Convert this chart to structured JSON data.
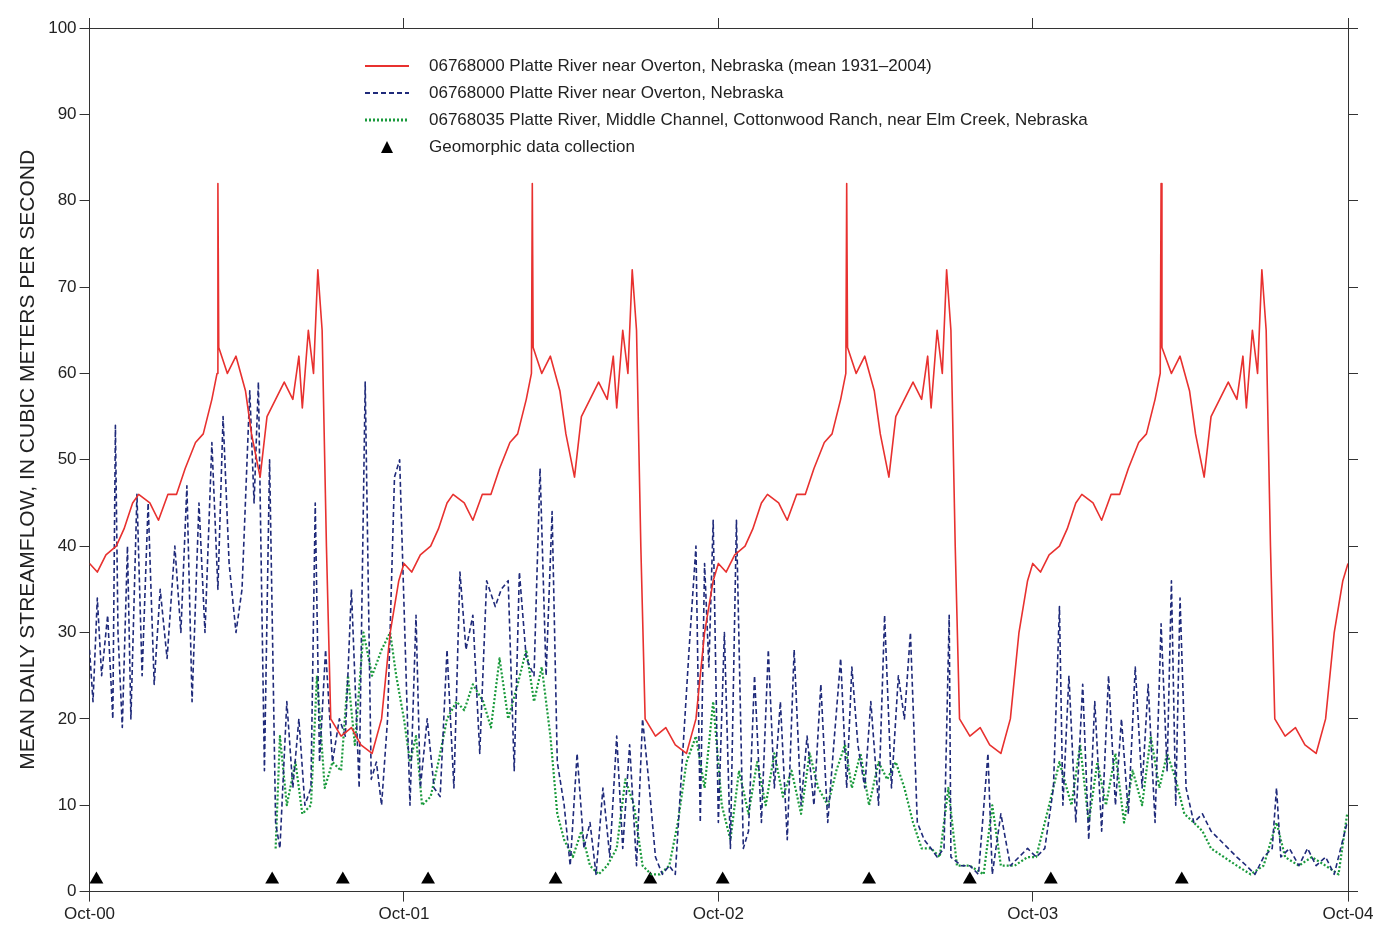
{
  "chart_data": {
    "type": "line",
    "ylabel": "MEAN DAILY STREAMFLOW, IN CUBIC METERS PER SECOND",
    "xlim": [
      "2000-10-01",
      "2004-10-01"
    ],
    "xticks": [
      {
        "value": "2000-10-01",
        "label": "Oct-00"
      },
      {
        "value": "2001-10-01",
        "label": "Oct-01"
      },
      {
        "value": "2002-10-01",
        "label": "Oct-02"
      },
      {
        "value": "2003-10-01",
        "label": "Oct-03"
      },
      {
        "value": "2004-10-01",
        "label": "Oct-04"
      }
    ],
    "ylim": [
      0,
      100
    ],
    "yticks": [
      0,
      10,
      20,
      30,
      40,
      50,
      60,
      70,
      80,
      90,
      100
    ],
    "grid": false,
    "legend": "top",
    "series": [
      {
        "name": "06768000 Platte River near Overton, Nebraska (mean 1931–2004)",
        "color": "#e8312f",
        "line_style": "solid",
        "marker": "none",
        "x": [
          "2000-10-01",
          "2000-10-10",
          "2000-10-20",
          "2000-11-01",
          "2000-11-10",
          "2000-11-20",
          "2000-11-27",
          "2000-12-10",
          "2000-12-20",
          "2000-12-31",
          "2001-01-10",
          "2001-01-20",
          "2001-02-01",
          "2001-02-10",
          "2001-02-20",
          "2001-02-26",
          "2001-02-27",
          "2001-02-28",
          "2001-03-10",
          "2001-03-20",
          "2001-03-31",
          "2001-04-07",
          "2001-04-17",
          "2001-04-25",
          "2001-05-05",
          "2001-05-15",
          "2001-05-25",
          "2001-06-01",
          "2001-06-05",
          "2001-06-12",
          "2001-06-18",
          "2001-06-23",
          "2001-06-28",
          "2001-07-03",
          "2001-07-08",
          "2001-07-20",
          "2001-08-01",
          "2001-08-12",
          "2001-08-25",
          "2001-09-05",
          "2001-09-15",
          "2001-09-25",
          "2001-10-01",
          "2001-10-10",
          "2001-10-20",
          "2001-11-01",
          "2001-11-10",
          "2001-11-20",
          "2001-11-27",
          "2001-12-10",
          "2001-12-20",
          "2001-12-31",
          "2002-01-10",
          "2002-01-20",
          "2002-02-01",
          "2002-02-10",
          "2002-02-20",
          "2002-02-26",
          "2002-02-27",
          "2002-02-28",
          "2002-03-10",
          "2002-03-20",
          "2002-03-31",
          "2002-04-07",
          "2002-04-17",
          "2002-04-25",
          "2002-05-05",
          "2002-05-15",
          "2002-05-25",
          "2002-06-01",
          "2002-06-05",
          "2002-06-12",
          "2002-06-18",
          "2002-06-23",
          "2002-06-28",
          "2002-07-03",
          "2002-07-08",
          "2002-07-20",
          "2002-08-01",
          "2002-08-12",
          "2002-08-25",
          "2002-09-05",
          "2002-09-15",
          "2002-09-25",
          "2002-10-01",
          "2002-10-10",
          "2002-10-20",
          "2002-11-01",
          "2002-11-10",
          "2002-11-20",
          "2002-11-27",
          "2002-12-10",
          "2002-12-20",
          "2002-12-31",
          "2003-01-10",
          "2003-01-20",
          "2003-02-01",
          "2003-02-10",
          "2003-02-20",
          "2003-02-26",
          "2003-02-27",
          "2003-02-28",
          "2003-03-10",
          "2003-03-20",
          "2003-03-31",
          "2003-04-07",
          "2003-04-17",
          "2003-04-25",
          "2003-05-05",
          "2003-05-15",
          "2003-05-25",
          "2003-06-01",
          "2003-06-05",
          "2003-06-12",
          "2003-06-18",
          "2003-06-23",
          "2003-06-28",
          "2003-07-03",
          "2003-07-08",
          "2003-07-20",
          "2003-08-01",
          "2003-08-12",
          "2003-08-25",
          "2003-09-05",
          "2003-09-15",
          "2003-09-25",
          "2003-10-01",
          "2003-10-10",
          "2003-10-20",
          "2003-11-01",
          "2003-11-10",
          "2003-11-20",
          "2003-11-27",
          "2003-12-10",
          "2003-12-20",
          "2003-12-31",
          "2004-01-10",
          "2004-01-20",
          "2004-02-01",
          "2004-02-10",
          "2004-02-20",
          "2004-02-26",
          "2004-02-27",
          "2004-02-28",
          "2004-03-10",
          "2004-03-20",
          "2004-03-31",
          "2004-04-07",
          "2004-04-17",
          "2004-04-25",
          "2004-05-05",
          "2004-05-15",
          "2004-05-25",
          "2004-06-01",
          "2004-06-05",
          "2004-06-12",
          "2004-06-18",
          "2004-06-23",
          "2004-06-28",
          "2004-07-03",
          "2004-07-08",
          "2004-07-20",
          "2004-08-01",
          "2004-08-12",
          "2004-08-25",
          "2004-09-05",
          "2004-09-15",
          "2004-09-25",
          "2004-10-01"
        ],
        "values": [
          38,
          37,
          39,
          40,
          42,
          45,
          46,
          45,
          43,
          46,
          46,
          49,
          52,
          53,
          57,
          60,
          82,
          63,
          60,
          62,
          58,
          53,
          48,
          55,
          57,
          59,
          57,
          62,
          56,
          65,
          60,
          72,
          65,
          40,
          20,
          18,
          19,
          17,
          16,
          20,
          30,
          36,
          38,
          37,
          39,
          40,
          42,
          45,
          46,
          45,
          43,
          46,
          46,
          49,
          52,
          53,
          57,
          60,
          82,
          63,
          60,
          62,
          58,
          53,
          48,
          55,
          57,
          59,
          57,
          62,
          56,
          65,
          60,
          72,
          65,
          40,
          20,
          18,
          19,
          17,
          16,
          20,
          30,
          36,
          38,
          37,
          39,
          40,
          42,
          45,
          46,
          45,
          43,
          46,
          46,
          49,
          52,
          53,
          57,
          60,
          82,
          63,
          60,
          62,
          58,
          53,
          48,
          55,
          57,
          59,
          57,
          62,
          56,
          65,
          60,
          72,
          65,
          40,
          20,
          18,
          19,
          17,
          16,
          20,
          30,
          36,
          38,
          37,
          39,
          40,
          42,
          45,
          46,
          45,
          43,
          46,
          46,
          49,
          52,
          53,
          57,
          60,
          82,
          63,
          60,
          62,
          58,
          53,
          48,
          55,
          57,
          59,
          57,
          62,
          56,
          65,
          60,
          72,
          65,
          40,
          20,
          18,
          19,
          17,
          16,
          20,
          30,
          36,
          38
        ]
      },
      {
        "name": "06768000 Platte River near Overton, Nebraska",
        "color": "#1f2a7a",
        "line_style": "dashed",
        "marker": "none",
        "x": [
          "2000-10-01",
          "2000-10-05",
          "2000-10-10",
          "2000-10-15",
          "2000-10-22",
          "2000-10-28",
          "2000-10-31",
          "2000-11-03",
          "2000-11-08",
          "2000-11-14",
          "2000-11-18",
          "2000-11-25",
          "2000-12-01",
          "2000-12-08",
          "2000-12-15",
          "2000-12-22",
          "2000-12-30",
          "2001-01-08",
          "2001-01-15",
          "2001-01-22",
          "2001-01-28",
          "2001-02-05",
          "2001-02-12",
          "2001-02-20",
          "2001-02-27",
          "2001-03-05",
          "2001-03-12",
          "2001-03-20",
          "2001-03-27",
          "2001-04-05",
          "2001-04-10",
          "2001-04-15",
          "2001-04-22",
          "2001-04-28",
          "2001-05-05",
          "2001-05-10",
          "2001-05-18",
          "2001-05-25",
          "2001-06-01",
          "2001-06-08",
          "2001-06-15",
          "2001-06-20",
          "2001-06-25",
          "2001-07-02",
          "2001-07-10",
          "2001-07-18",
          "2001-07-25",
          "2001-08-01",
          "2001-08-10",
          "2001-08-17",
          "2001-08-24",
          "2001-08-30",
          "2001-09-05",
          "2001-09-12",
          "2001-09-20",
          "2001-09-26",
          "2001-10-02",
          "2001-10-08",
          "2001-10-15",
          "2001-10-20",
          "2001-10-28",
          "2001-11-05",
          "2001-11-12",
          "2001-11-20",
          "2001-11-28",
          "2001-12-05",
          "2001-12-12",
          "2001-12-20",
          "2001-12-28",
          "2002-01-05",
          "2002-01-15",
          "2002-01-22",
          "2002-01-30",
          "2002-02-06",
          "2002-02-12",
          "2002-02-20",
          "2002-03-01",
          "2002-03-08",
          "2002-03-15",
          "2002-03-22",
          "2002-03-28",
          "2002-04-05",
          "2002-04-12",
          "2002-04-20",
          "2002-04-28",
          "2002-05-05",
          "2002-05-12",
          "2002-05-20",
          "2002-05-28",
          "2002-06-05",
          "2002-06-12",
          "2002-06-20",
          "2002-06-28",
          "2002-07-05",
          "2002-07-12",
          "2002-07-20",
          "2002-07-28",
          "2002-08-05",
          "2002-08-12",
          "2002-08-20",
          "2002-08-28",
          "2002-09-05",
          "2002-09-10",
          "2002-09-15",
          "2002-09-20",
          "2002-09-25",
          "2002-10-01",
          "2002-10-08",
          "2002-10-15",
          "2002-10-22",
          "2002-10-30",
          "2002-11-05",
          "2002-11-12",
          "2002-11-20",
          "2002-11-28",
          "2002-12-05",
          "2002-12-12",
          "2002-12-20",
          "2002-12-28",
          "2003-01-05",
          "2003-01-12",
          "2003-01-20",
          "2003-01-28",
          "2003-02-05",
          "2003-02-12",
          "2003-02-20",
          "2003-02-27",
          "2003-03-05",
          "2003-03-12",
          "2003-03-20",
          "2003-03-27",
          "2003-04-05",
          "2003-04-12",
          "2003-04-20",
          "2003-04-28",
          "2003-05-05",
          "2003-05-12",
          "2003-05-20",
          "2003-05-28",
          "2003-06-05",
          "2003-06-12",
          "2003-06-20",
          "2003-06-26",
          "2003-06-28",
          "2003-07-10",
          "2003-07-20",
          "2003-07-30",
          "2003-08-10",
          "2003-08-15",
          "2003-08-25",
          "2003-09-05",
          "2003-09-15",
          "2003-09-25",
          "2003-10-05",
          "2003-10-15",
          "2003-10-25",
          "2003-11-01",
          "2003-11-05",
          "2003-11-12",
          "2003-11-20",
          "2003-11-28",
          "2003-12-05",
          "2003-12-12",
          "2003-12-20",
          "2003-12-28",
          "2004-01-05",
          "2004-01-12",
          "2004-01-20",
          "2004-01-28",
          "2004-02-05",
          "2004-02-12",
          "2004-02-20",
          "2004-02-27",
          "2004-03-05",
          "2004-03-10",
          "2004-03-15",
          "2004-03-20",
          "2004-03-27",
          "2004-04-05",
          "2004-04-15",
          "2004-04-25",
          "2004-05-05",
          "2004-05-15",
          "2004-05-25",
          "2004-06-05",
          "2004-06-15",
          "2004-06-25",
          "2004-07-05",
          "2004-07-10",
          "2004-07-15",
          "2004-07-25",
          "2004-08-05",
          "2004-08-15",
          "2004-08-25",
          "2004-09-05",
          "2004-09-15",
          "2004-09-25",
          "2004-09-30"
        ],
        "values": [
          28,
          22,
          34,
          25,
          32,
          20,
          54,
          30,
          19,
          40,
          20,
          46,
          25,
          45,
          24,
          35,
          27,
          40,
          30,
          47,
          22,
          45,
          30,
          52,
          35,
          55,
          38,
          30,
          35,
          58,
          45,
          59,
          14,
          50,
          8,
          5,
          22,
          12,
          20,
          10,
          12,
          45,
          15,
          28,
          15,
          20,
          18,
          35,
          12,
          59,
          13,
          15,
          10,
          20,
          48,
          50,
          30,
          10,
          32,
          12,
          20,
          12,
          11,
          28,
          12,
          37,
          28,
          32,
          16,
          36,
          33,
          35,
          36,
          14,
          37,
          27,
          25,
          49,
          25,
          44,
          15,
          10,
          3,
          16,
          5,
          8,
          2,
          12,
          4,
          18,
          5,
          17,
          3,
          20,
          13,
          4,
          2,
          3,
          2,
          15,
          28,
          40,
          8,
          38,
          26,
          43,
          8,
          30,
          5,
          43,
          5,
          7,
          25,
          8,
          28,
          12,
          22,
          6,
          28,
          10,
          18,
          10,
          24,
          8,
          17,
          27,
          12,
          26,
          17,
          12,
          22,
          10,
          32,
          12,
          25,
          20,
          30,
          8,
          6,
          5,
          4,
          5,
          32,
          4,
          3,
          3,
          2,
          16,
          2,
          9,
          3,
          4,
          5,
          4,
          5,
          12,
          33,
          10,
          25,
          8,
          24,
          6,
          22,
          7,
          25,
          10,
          20,
          9,
          26,
          12,
          24,
          8,
          31,
          14,
          36,
          10,
          34,
          12,
          8,
          9,
          7,
          6,
          5,
          4,
          3,
          2,
          4,
          5,
          12,
          4,
          5,
          3,
          5,
          3,
          4,
          2,
          6,
          8
        ]
      },
      {
        "name": "06768035 Platte River, Middle Channel, Cottonwood Ranch, near Elm Creek, Nebraska",
        "color": "#1a9a3c",
        "line_style": "dotted",
        "marker": "none",
        "x": [
          "2001-05-05",
          "2001-05-10",
          "2001-05-18",
          "2001-05-28",
          "2001-06-05",
          "2001-06-15",
          "2001-06-22",
          "2001-07-01",
          "2001-07-10",
          "2001-07-20",
          "2001-07-28",
          "2001-08-05",
          "2001-08-15",
          "2001-08-25",
          "2001-09-05",
          "2001-09-15",
          "2001-09-22",
          "2001-10-01",
          "2001-10-08",
          "2001-10-15",
          "2001-10-22",
          "2001-11-01",
          "2001-11-10",
          "2001-11-20",
          "2001-12-01",
          "2001-12-10",
          "2001-12-20",
          "2002-01-01",
          "2002-01-10",
          "2002-01-20",
          "2002-01-30",
          "2002-02-10",
          "2002-02-20",
          "2002-03-01",
          "2002-03-10",
          "2002-03-20",
          "2002-03-28",
          "2002-04-05",
          "2002-04-15",
          "2002-04-25",
          "2002-05-05",
          "2002-05-15",
          "2002-05-25",
          "2002-06-05",
          "2002-06-15",
          "2002-06-25",
          "2002-07-05",
          "2002-07-15",
          "2002-07-25",
          "2002-08-05",
          "2002-08-15",
          "2002-08-25",
          "2002-09-05",
          "2002-09-15",
          "2002-09-25",
          "2002-10-05",
          "2002-10-15",
          "2002-10-25",
          "2002-11-05",
          "2002-11-15",
          "2002-11-25",
          "2002-12-05",
          "2002-12-15",
          "2002-12-25",
          "2003-01-05",
          "2003-01-15",
          "2003-01-25",
          "2003-02-05",
          "2003-02-15",
          "2003-02-25",
          "2003-03-05",
          "2003-03-15",
          "2003-03-25",
          "2003-04-05",
          "2003-04-15",
          "2003-04-25",
          "2003-05-05",
          "2003-05-15",
          "2003-05-25",
          "2003-06-05",
          "2003-06-15",
          "2003-06-25",
          "2003-07-05",
          "2003-07-20",
          "2003-08-05",
          "2003-08-15",
          "2003-08-25",
          "2003-09-10",
          "2003-09-25",
          "2003-10-05",
          "2003-10-20",
          "2003-11-01",
          "2003-11-15",
          "2003-11-25",
          "2003-12-05",
          "2003-12-15",
          "2003-12-25",
          "2004-01-05",
          "2004-01-15",
          "2004-01-25",
          "2004-02-05",
          "2004-02-15",
          "2004-02-25",
          "2004-03-05",
          "2004-03-15",
          "2004-03-25",
          "2004-04-05",
          "2004-04-15",
          "2004-04-25",
          "2004-05-10",
          "2004-05-25",
          "2004-06-10",
          "2004-06-25",
          "2004-07-10",
          "2004-07-20",
          "2004-08-05",
          "2004-08-20",
          "2004-09-05",
          "2004-09-20",
          "2004-09-30"
        ],
        "values": [
          5,
          18,
          10,
          15,
          9,
          10,
          25,
          12,
          15,
          14,
          25,
          17,
          30,
          25,
          28,
          30,
          25,
          20,
          15,
          18,
          10,
          11,
          15,
          20,
          22,
          21,
          24,
          22,
          19,
          27,
          20,
          24,
          28,
          22,
          26,
          18,
          9,
          6,
          4,
          7,
          3,
          2,
          3,
          5,
          13,
          10,
          3,
          2,
          2,
          3,
          8,
          15,
          18,
          12,
          22,
          10,
          6,
          14,
          9,
          15,
          10,
          16,
          11,
          14,
          9,
          16,
          12,
          10,
          14,
          17,
          12,
          16,
          10,
          15,
          13,
          15,
          12,
          8,
          5,
          5,
          4,
          12,
          3,
          3,
          2,
          10,
          3,
          3,
          4,
          4,
          10,
          15,
          10,
          17,
          8,
          15,
          10,
          16,
          8,
          14,
          10,
          18,
          12,
          16,
          13,
          9,
          8,
          7,
          5,
          4,
          3,
          2,
          3,
          8,
          4,
          3,
          4,
          3,
          2,
          9
        ]
      },
      {
        "name": "Geomorphic data collection",
        "type": "scatter",
        "color": "#000000",
        "marker": "triangle",
        "x": [
          "2000-10-09",
          "2001-05-01",
          "2001-07-22",
          "2001-10-29",
          "2002-03-26",
          "2002-07-14",
          "2002-10-06",
          "2003-03-25",
          "2003-07-20",
          "2003-10-22",
          "2004-03-22"
        ],
        "values": [
          1.4,
          1.4,
          1.4,
          1.4,
          1.4,
          1.4,
          1.4,
          1.4,
          1.4,
          1.4,
          1.4
        ]
      }
    ]
  }
}
